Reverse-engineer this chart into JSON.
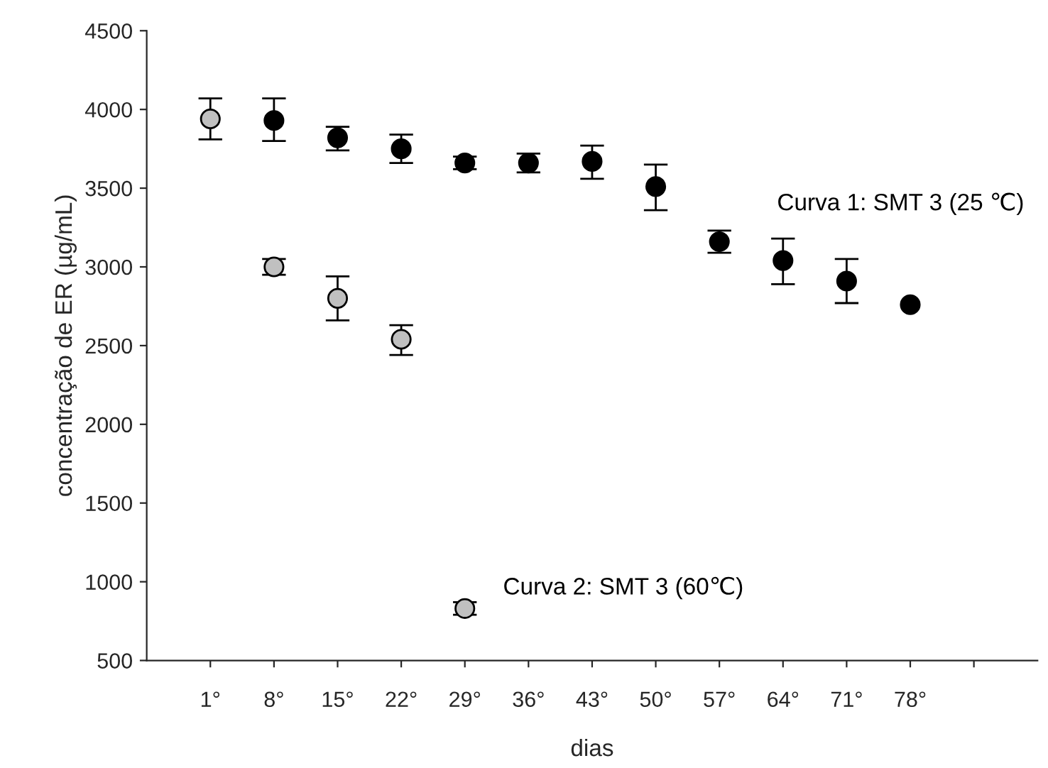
{
  "chart_data": {
    "type": "scatter",
    "xlabel": "dias",
    "ylabel": "concentração de ER (µg/mL)",
    "categories": [
      "1°",
      "8°",
      "15°",
      "22°",
      "29°",
      "36°",
      "43°",
      "50°",
      "57°",
      "64°",
      "71°",
      "78°",
      null
    ],
    "series": [
      {
        "name": "Curva 1: SMT 3 (25 ℃)",
        "color": "#000000",
        "values": [
          null,
          3930,
          3820,
          3750,
          3660,
          3660,
          3670,
          3510,
          3160,
          3040,
          2910,
          2760,
          null
        ],
        "errors": [
          null,
          [
            3800,
            4070
          ],
          [
            3740,
            3890
          ],
          [
            3660,
            3840
          ],
          [
            3620,
            3700
          ],
          [
            3600,
            3720
          ],
          [
            3560,
            3770
          ],
          [
            3360,
            3650
          ],
          [
            3090,
            3230
          ],
          [
            2890,
            3180
          ],
          [
            2770,
            3050
          ],
          null,
          null
        ]
      },
      {
        "name": "Curva 2: SMT 3 (60℃)",
        "color": "#c0c0c0",
        "values": [
          3940,
          3000,
          2800,
          2540,
          830,
          null,
          null,
          null,
          null,
          null,
          null,
          null,
          null
        ],
        "errors": [
          [
            3810,
            4070
          ],
          [
            2950,
            3050
          ],
          [
            2660,
            2940
          ],
          [
            2440,
            2630
          ],
          [
            790,
            870
          ],
          null,
          null,
          null,
          null,
          null,
          null,
          null,
          null
        ]
      }
    ],
    "ylim": [
      500,
      4500
    ],
    "yticks": [
      500,
      1000,
      1500,
      2000,
      2500,
      3000,
      3500,
      4000,
      4500
    ],
    "marker": "circle",
    "grid": false,
    "legend": false
  }
}
